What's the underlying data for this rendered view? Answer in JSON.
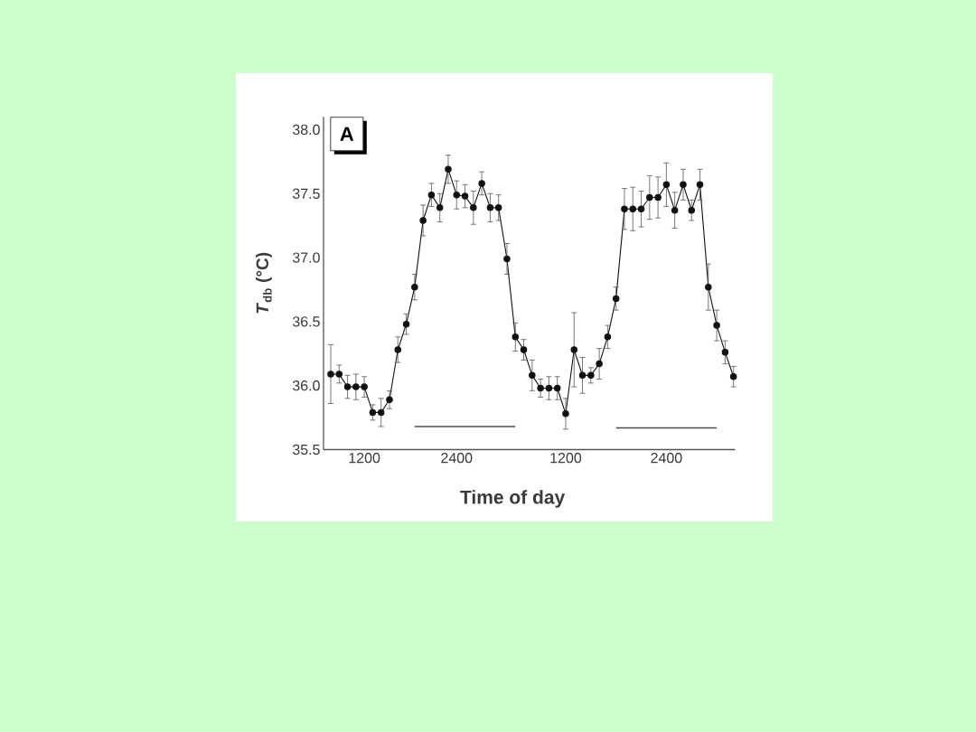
{
  "chart_data": {
    "type": "line",
    "xlabel": "Time of day",
    "ylabel": "*T*$_{db}$ (°C)",
    "annotations": [
      "A"
    ],
    "categories": [
      null,
      null,
      null,
      null,
      "1200",
      null,
      null,
      null,
      null,
      null,
      null,
      null,
      null,
      null,
      null,
      "2400",
      null,
      null,
      null,
      null,
      null,
      null,
      null,
      null,
      null,
      null,
      null,
      null,
      "1200",
      null,
      null,
      null,
      null,
      null,
      null,
      null,
      null,
      null,
      null,
      null,
      "2400",
      null,
      null,
      null,
      null,
      null,
      null,
      null,
      null
    ],
    "ylim": [
      35.5,
      38.1
    ],
    "yticks": [
      35.5,
      {
        "value": 36,
        "label": "36.0"
      },
      36.5,
      {
        "value": 37,
        "label": "37.0"
      },
      37.5,
      {
        "value": 38,
        "label": "38.0"
      }
    ],
    "marker": "circle",
    "line_style": "solid",
    "series": [
      {
        "color": "#111111",
        "values": [
          36.09,
          36.09,
          35.99,
          35.99,
          35.99,
          35.79,
          35.79,
          35.89,
          36.28,
          36.48,
          36.77,
          37.29,
          37.49,
          37.39,
          37.69,
          37.49,
          37.48,
          37.39,
          37.58,
          37.39,
          37.39,
          36.99,
          36.38,
          36.28,
          36.08,
          35.98,
          35.98,
          35.98,
          35.78,
          36.28,
          36.08,
          36.08,
          36.17,
          36.38,
          36.68,
          37.38,
          37.38,
          37.38,
          37.47,
          37.47,
          37.57,
          37.37,
          37.57,
          37.37,
          37.57,
          36.77,
          36.47,
          36.26,
          36.07
        ],
        "errors": [
          0.23,
          0.07,
          0.09,
          0.1,
          0.08,
          0.06,
          0.11,
          0.07,
          0.1,
          0.08,
          0.1,
          0.12,
          0.09,
          0.11,
          0.11,
          0.11,
          0.09,
          0.13,
          0.09,
          0.11,
          0.1,
          0.12,
          0.11,
          0.08,
          0.12,
          0.07,
          0.09,
          0.09,
          0.12,
          0.29,
          0.14,
          0.06,
          0.12,
          0.09,
          0.09,
          0.16,
          0.17,
          0.14,
          0.17,
          0.16,
          0.17,
          0.14,
          0.12,
          0.08,
          0.12,
          0.18,
          0.12,
          0.09,
          0.08
        ]
      },
      {
        "type": "line",
        "color": "#4d4d4d",
        "marker": "none",
        "values": [
          null,
          null,
          null,
          null,
          null,
          null,
          null,
          null,
          null,
          null,
          35.68,
          35.68,
          35.68,
          35.68,
          35.68,
          35.68,
          35.68,
          35.68,
          35.68,
          35.68,
          35.68,
          35.68,
          35.68,
          null,
          null,
          null,
          null,
          null,
          null,
          null,
          null,
          null,
          null,
          null,
          35.67,
          35.67,
          35.67,
          35.67,
          35.67,
          35.67,
          35.67,
          35.67,
          35.67,
          35.67,
          35.67,
          35.67,
          35.67,
          null,
          null
        ]
      }
    ]
  }
}
